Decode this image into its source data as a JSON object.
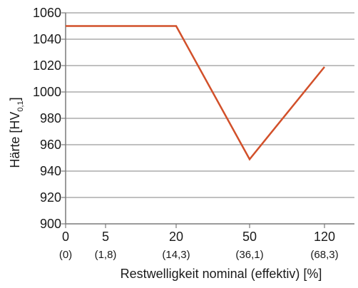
{
  "chart_data": {
    "type": "line",
    "ylabel": "Härte [HV",
    "ylabel_subscript": "0,1",
    "ylabel_suffix": "]",
    "xlabel": "Restwelligkeit nominal (effektiv) [%]",
    "ylim": [
      900,
      1060
    ],
    "yticks": [
      900,
      920,
      940,
      960,
      980,
      1000,
      1020,
      1040,
      1060
    ],
    "ytick_labels": [
      "900",
      "920",
      "940",
      "960",
      "980",
      "1000",
      "1020",
      "1040",
      "1060"
    ],
    "x_categories": [
      "0",
      "5",
      "20",
      "50",
      "120"
    ],
    "x_categories_effective": [
      "(0)",
      "(1,8)",
      "(14,3)",
      "(36,1)",
      "(68,3)"
    ],
    "grid": true,
    "series": [
      {
        "color": "#d2502a",
        "x": [
          "0",
          "20",
          "50",
          "120"
        ],
        "values": [
          1050,
          1050,
          949,
          1019
        ]
      }
    ]
  }
}
